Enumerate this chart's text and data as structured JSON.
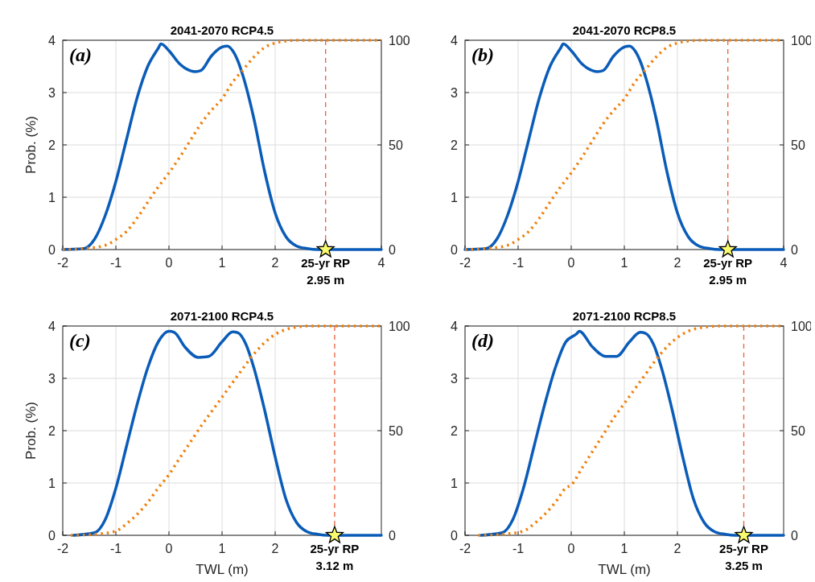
{
  "chart_data": [
    {
      "type": "line",
      "title": "2041-2070 RCP4.5",
      "annotations": [
        "(a)"
      ],
      "ylabel": "Prob. (%)",
      "xlim": [
        -2,
        4
      ],
      "xticks": [
        -2,
        -1,
        0,
        1,
        2,
        4
      ],
      "ylim": [
        0,
        4
      ],
      "yticks": [
        0,
        1,
        2,
        3,
        4
      ],
      "y2lim": [
        0,
        100
      ],
      "y2ticks": [
        0,
        50,
        100
      ],
      "grid": true,
      "series": [
        {
          "color": "#0a5cb8",
          "line_style": "solid",
          "x": [
            -2,
            -1.6,
            -1.4,
            -1.2,
            -1,
            -0.8,
            -0.6,
            -0.4,
            -0.2,
            -0.15,
            0,
            0.2,
            0.3,
            0.5,
            0.6,
            0.8,
            1,
            1.1,
            1.2,
            1.3,
            1.4,
            1.6,
            1.8,
            2,
            2.2,
            2.4,
            2.6,
            2.8,
            3,
            4
          ],
          "values": [
            0,
            0.02,
            0.2,
            0.65,
            1.3,
            2.1,
            2.9,
            3.5,
            3.85,
            3.93,
            3.8,
            3.55,
            3.47,
            3.4,
            3.42,
            3.7,
            3.87,
            3.89,
            3.8,
            3.6,
            3.3,
            2.5,
            1.5,
            0.7,
            0.25,
            0.07,
            0.02,
            0,
            0,
            0
          ]
        },
        {
          "color": "#f07f0a",
          "line_style": "dotted",
          "axis": "y2",
          "x": [
            -2,
            -1.6,
            -1.2,
            -1,
            -0.8,
            -0.6,
            -0.4,
            -0.2,
            0,
            0.2,
            0.4,
            0.6,
            0.8,
            1,
            1.2,
            1.4,
            1.6,
            1.8,
            2,
            2.2,
            2.4,
            4
          ],
          "values": [
            0,
            0.5,
            2,
            4.8,
            8.6,
            15,
            22.6,
            30,
            36.6,
            44,
            52,
            60,
            66.5,
            72,
            80,
            86,
            92,
            96.5,
            98.7,
            99.6,
            100,
            100
          ]
        },
        {
          "type": "scatter",
          "marker": "star",
          "color": "#fafa6e",
          "x": [
            2.95
          ],
          "values": [
            0
          ]
        }
      ],
      "ref_lines": [
        {
          "axis": "x",
          "value": 2.95,
          "label": "25-yr RP\n2.95 m",
          "color": "#e8603c",
          "line_style": "dashed"
        }
      ]
    },
    {
      "type": "line",
      "title": "2041-2070 RCP8.5",
      "annotations": [
        "(b)"
      ],
      "xlim": [
        -2,
        4
      ],
      "xticks": [
        -2,
        -1,
        0,
        1,
        2,
        4
      ],
      "ylim": [
        0,
        4
      ],
      "yticks": [
        0,
        1,
        2,
        3,
        4
      ],
      "y2lim": [
        0,
        100
      ],
      "y2ticks": [
        0,
        50,
        100
      ],
      "grid": true,
      "series": [
        {
          "color": "#0a5cb8",
          "line_style": "solid",
          "x": [
            -2,
            -1.6,
            -1.4,
            -1.2,
            -1,
            -0.8,
            -0.6,
            -0.4,
            -0.2,
            -0.15,
            0,
            0.2,
            0.3,
            0.5,
            0.6,
            0.8,
            1,
            1.1,
            1.2,
            1.3,
            1.4,
            1.6,
            1.8,
            2,
            2.2,
            2.4,
            2.6,
            2.8,
            3,
            4
          ],
          "values": [
            0,
            0.02,
            0.2,
            0.65,
            1.3,
            2.1,
            2.9,
            3.5,
            3.85,
            3.93,
            3.8,
            3.55,
            3.47,
            3.4,
            3.42,
            3.7,
            3.87,
            3.89,
            3.8,
            3.6,
            3.3,
            2.5,
            1.5,
            0.7,
            0.25,
            0.07,
            0.02,
            0,
            0,
            0
          ]
        },
        {
          "color": "#f07f0a",
          "line_style": "dotted",
          "axis": "y2",
          "x": [
            -2,
            -1.6,
            -1.2,
            -1,
            -0.8,
            -0.6,
            -0.4,
            -0.2,
            0,
            0.2,
            0.4,
            0.6,
            0.8,
            1,
            1.2,
            1.4,
            1.6,
            1.8,
            2,
            2.2,
            2.4,
            4
          ],
          "values": [
            0,
            0.5,
            2,
            4.8,
            8.6,
            15,
            22.6,
            30,
            36.6,
            44,
            52,
            60,
            66.5,
            72,
            80,
            86,
            92,
            96.5,
            98.7,
            99.6,
            100,
            100
          ]
        },
        {
          "type": "scatter",
          "marker": "star",
          "color": "#fafa6e",
          "x": [
            2.95
          ],
          "values": [
            0
          ]
        }
      ],
      "ref_lines": [
        {
          "axis": "x",
          "value": 2.95,
          "label": "25-yr RP\n2.95 m",
          "color": "#e8603c",
          "line_style": "dashed"
        }
      ]
    },
    {
      "type": "line",
      "title": "2071-2100 RCP4.5",
      "annotations": [
        "(c)"
      ],
      "xlabel": "TWL (m)",
      "ylabel": "Prob. (%)",
      "xlim": [
        -2,
        4
      ],
      "xticks": [
        -2,
        -1,
        0,
        1,
        2
      ],
      "ylim": [
        0,
        4
      ],
      "yticks": [
        0,
        1,
        2,
        3,
        4
      ],
      "y2lim": [
        0,
        100
      ],
      "y2ticks": [
        0,
        50,
        100
      ],
      "grid": true,
      "series": [
        {
          "color": "#0a5cb8",
          "line_style": "solid",
          "x": [
            -1.8,
            -1.4,
            -1.2,
            -1,
            -0.8,
            -0.6,
            -0.4,
            -0.2,
            0,
            0.1,
            0.3,
            0.55,
            0.75,
            1,
            1.2,
            1.3,
            1.45,
            1.6,
            1.8,
            2,
            2.2,
            2.4,
            2.6,
            2.8,
            3,
            4
          ],
          "values": [
            0,
            0.05,
            0.3,
            0.9,
            1.7,
            2.5,
            3.2,
            3.7,
            3.9,
            3.88,
            3.6,
            3.4,
            3.42,
            3.7,
            3.89,
            3.87,
            3.65,
            3.2,
            2.4,
            1.5,
            0.7,
            0.25,
            0.07,
            0.02,
            0,
            0
          ]
        },
        {
          "color": "#f07f0a",
          "line_style": "dotted",
          "axis": "y2",
          "x": [
            -1.85,
            -1.4,
            -1,
            -0.8,
            -0.6,
            -0.4,
            -0.2,
            0,
            0.2,
            0.4,
            0.6,
            0.8,
            1,
            1.2,
            1.4,
            1.6,
            1.8,
            2,
            2.2,
            2.4,
            2.6,
            4
          ],
          "values": [
            0,
            0.5,
            2,
            5.5,
            10,
            15.7,
            22.7,
            29,
            36.8,
            44.4,
            52,
            59,
            66,
            73,
            80,
            86.6,
            92,
            96,
            98.3,
            99.5,
            100,
            100
          ]
        },
        {
          "type": "scatter",
          "marker": "star",
          "color": "#fafa6e",
          "x": [
            3.12
          ],
          "values": [
            0
          ]
        }
      ],
      "ref_lines": [
        {
          "axis": "x",
          "value": 3.12,
          "label": "25-yr RP\n3.12 m",
          "color": "#e8603c",
          "line_style": "dashed"
        }
      ]
    },
    {
      "type": "line",
      "title": "2071-2100 RCP8.5",
      "annotations": [
        "(d)"
      ],
      "xlabel": "TWL (m)",
      "xlim": [
        -2,
        4
      ],
      "xticks": [
        -2,
        -1,
        0,
        1,
        2
      ],
      "ylim": [
        0,
        4
      ],
      "yticks": [
        0,
        1,
        2,
        3,
        4
      ],
      "y2lim": [
        0,
        100
      ],
      "y2ticks": [
        0,
        50,
        100
      ],
      "grid": true,
      "series": [
        {
          "color": "#0a5cb8",
          "line_style": "solid",
          "x": [
            -1.7,
            -1.3,
            -1.1,
            -0.9,
            -0.7,
            -0.5,
            -0.3,
            -0.1,
            0.1,
            0.15,
            0.4,
            0.65,
            0.85,
            1.1,
            1.3,
            1.4,
            1.55,
            1.7,
            1.9,
            2.1,
            2.3,
            2.5,
            2.7,
            2.9,
            3.1,
            4
          ],
          "values": [
            0,
            0.05,
            0.3,
            0.9,
            1.7,
            2.5,
            3.2,
            3.7,
            3.85,
            3.9,
            3.6,
            3.42,
            3.42,
            3.7,
            3.88,
            3.86,
            3.65,
            3.2,
            2.4,
            1.5,
            0.7,
            0.25,
            0.07,
            0.02,
            0,
            0
          ]
        },
        {
          "color": "#f07f0a",
          "line_style": "dotted",
          "axis": "y2",
          "x": [
            -1.75,
            -1.3,
            -0.9,
            -0.7,
            -0.5,
            -0.3,
            -0.1,
            0,
            0.2,
            0.4,
            0.6,
            0.8,
            1,
            1.2,
            1.4,
            1.6,
            1.8,
            2,
            2.2,
            2.4,
            2.6,
            2.8,
            4
          ],
          "values": [
            0,
            0.5,
            2,
            5.5,
            10,
            15.7,
            22.7,
            24,
            32,
            40,
            48,
            56,
            63,
            70,
            77,
            84,
            90,
            94.5,
            97.5,
            99,
            99.7,
            100,
            100
          ]
        },
        {
          "type": "scatter",
          "marker": "star",
          "color": "#fafa6e",
          "x": [
            3.25
          ],
          "values": [
            0
          ]
        }
      ],
      "ref_lines": [
        {
          "axis": "x",
          "value": 3.25,
          "label": "25-yr RP\n3.25 m",
          "color": "#e8603c",
          "line_style": "dashed"
        }
      ]
    }
  ]
}
